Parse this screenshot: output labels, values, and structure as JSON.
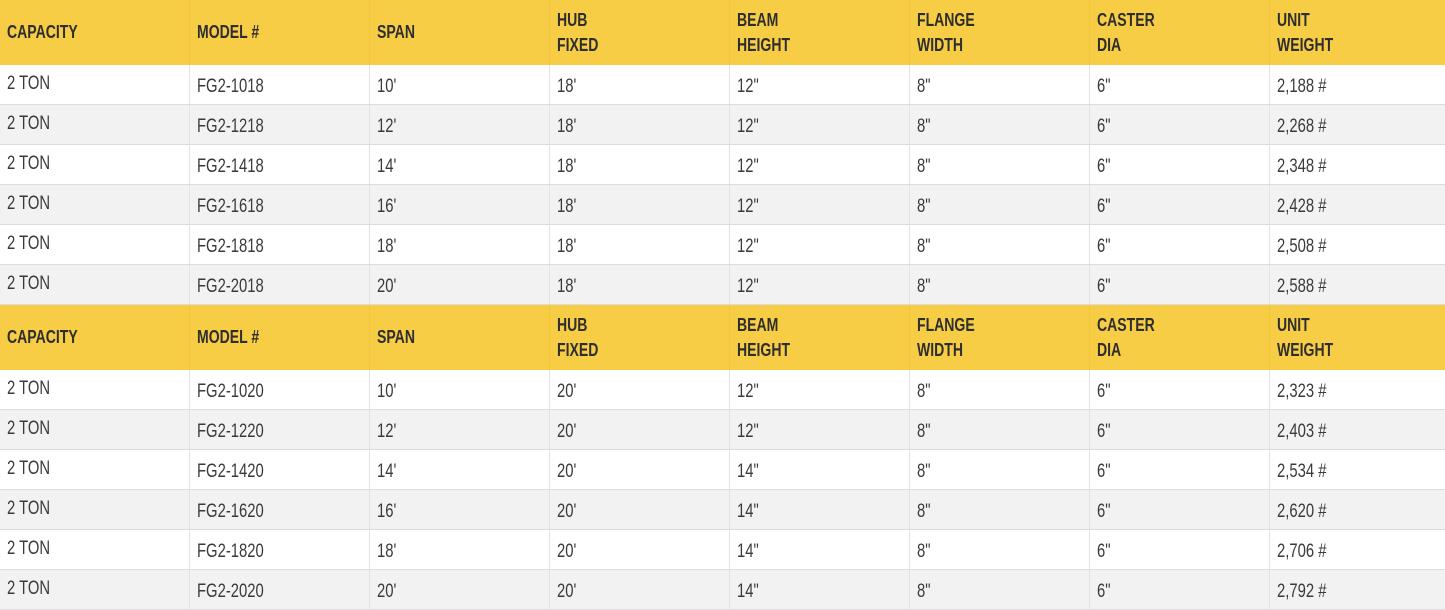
{
  "colors": {
    "header_bg": "#f7cd45",
    "row_alt_bg": "#f2f2f2",
    "text": "#3a3a3a"
  },
  "headers": [
    [
      "CAPACITY"
    ],
    [
      "MODEL #"
    ],
    [
      "SPAN"
    ],
    [
      "HUB",
      "FIXED"
    ],
    [
      "BEAM",
      "HEIGHT"
    ],
    [
      "FLANGE",
      "WIDTH"
    ],
    [
      "CASTER",
      "DIA"
    ],
    [
      "UNIT",
      "WEIGHT"
    ]
  ],
  "tables": [
    {
      "rows": [
        [
          "2 TON",
          "FG2-1018",
          "10'",
          "18'",
          "12\"",
          "8\"",
          "6\"",
          "2,188 #"
        ],
        [
          "2 TON",
          "FG2-1218",
          "12'",
          "18'",
          "12\"",
          "8\"",
          "6\"",
          "2,268 #"
        ],
        [
          "2 TON",
          "FG2-1418",
          "14'",
          "18'",
          "12\"",
          "8\"",
          "6\"",
          "2,348 #"
        ],
        [
          "2 TON",
          "FG2-1618",
          "16'",
          "18'",
          "12\"",
          "8\"",
          "6\"",
          "2,428 #"
        ],
        [
          "2 TON",
          "FG2-1818",
          "18'",
          "18'",
          "12\"",
          "8\"",
          "6\"",
          "2,508 #"
        ],
        [
          "2 TON",
          "FG2-2018",
          "20'",
          "18'",
          "12\"",
          "8\"",
          "6\"",
          "2,588 #"
        ]
      ]
    },
    {
      "rows": [
        [
          "2 TON",
          "FG2-1020",
          "10'",
          "20'",
          "12\"",
          "8\"",
          "6\"",
          "2,323 #"
        ],
        [
          "2 TON",
          "FG2-1220",
          "12'",
          "20'",
          "12\"",
          "8\"",
          "6\"",
          "2,403 #"
        ],
        [
          "2 TON",
          "FG2-1420",
          "14'",
          "20'",
          "14\"",
          "8\"",
          "6\"",
          "2,534 #"
        ],
        [
          "2 TON",
          "FG2-1620",
          "16'",
          "20'",
          "14\"",
          "8\"",
          "6\"",
          "2,620 #"
        ],
        [
          "2 TON",
          "FG2-1820",
          "18'",
          "20'",
          "14\"",
          "8\"",
          "6\"",
          "2,706 #"
        ],
        [
          "2 TON",
          "FG2-2020",
          "20'",
          "20'",
          "14\"",
          "8\"",
          "6\"",
          "2,792 #"
        ]
      ]
    }
  ]
}
